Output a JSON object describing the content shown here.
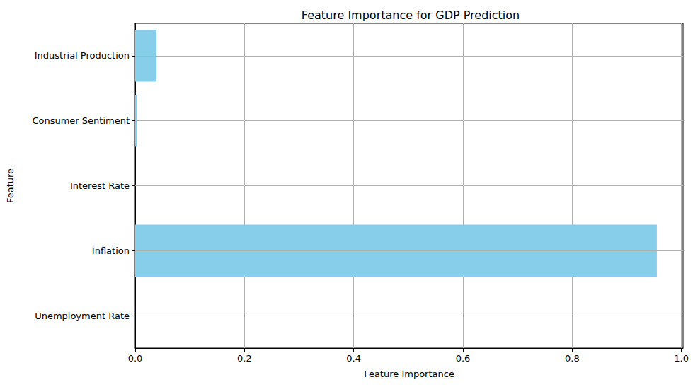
{
  "chart_data": {
    "type": "bar",
    "orientation": "horizontal",
    "title": "Feature Importance for GDP Prediction",
    "x_label": "Feature Importance",
    "y_label": "Feature",
    "categories": [
      "Unemployment Rate",
      "Inflation",
      "Interest Rate",
      "Consumer Sentiment",
      "Industrial Production"
    ],
    "values": [
      0.0,
      0.955,
      0.0,
      0.003,
      0.039
    ],
    "color": "#87ceeb",
    "xlim": [
      0,
      1.003
    ],
    "xticks": [
      {
        "value": 0,
        "label": "0.0"
      },
      {
        "value": 0.2,
        "label": "0.2"
      },
      {
        "value": 0.4,
        "label": "0.4"
      },
      {
        "value": 0.6,
        "label": "0.6"
      },
      {
        "value": 0.8,
        "label": "0.8"
      },
      {
        "value": 1.0,
        "label": "1.0"
      }
    ],
    "grid": true
  }
}
